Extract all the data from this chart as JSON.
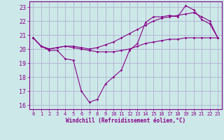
{
  "xlabel": "Windchill (Refroidissement éolien,°C)",
  "bg_color": "#cce8e8",
  "grid_color": "#aaaacc",
  "line_color": "#880088",
  "xlim": [
    -0.5,
    23.5
  ],
  "ylim": [
    15.7,
    23.4
  ],
  "yticks": [
    16,
    17,
    18,
    19,
    20,
    21,
    22,
    23
  ],
  "xticks": [
    0,
    1,
    2,
    3,
    4,
    5,
    6,
    7,
    8,
    9,
    10,
    11,
    12,
    13,
    14,
    15,
    16,
    17,
    18,
    19,
    20,
    21,
    22,
    23
  ],
  "line1_x": [
    0,
    1,
    2,
    3,
    4,
    5,
    6,
    7,
    8,
    9,
    10,
    11,
    12,
    13,
    14,
    15,
    16,
    17,
    18,
    19,
    20,
    21,
    22,
    23
  ],
  "line1_y": [
    20.8,
    20.2,
    19.9,
    19.9,
    19.3,
    19.2,
    17.0,
    16.2,
    16.4,
    17.5,
    18.0,
    18.5,
    19.9,
    20.4,
    21.9,
    22.3,
    22.3,
    22.4,
    22.3,
    23.1,
    22.8,
    22.1,
    21.8,
    20.8
  ],
  "line2_x": [
    0,
    1,
    2,
    3,
    4,
    5,
    6,
    7,
    8,
    9,
    10,
    11,
    12,
    13,
    14,
    15,
    16,
    17,
    18,
    19,
    20,
    21,
    22,
    23
  ],
  "line2_y": [
    20.8,
    20.2,
    20.0,
    20.1,
    20.2,
    20.1,
    20.0,
    19.9,
    19.8,
    19.8,
    19.8,
    19.9,
    20.0,
    20.2,
    20.4,
    20.5,
    20.6,
    20.7,
    20.7,
    20.8,
    20.8,
    20.8,
    20.8,
    20.8
  ],
  "line3_x": [
    0,
    1,
    2,
    3,
    4,
    5,
    6,
    7,
    8,
    9,
    10,
    11,
    12,
    13,
    14,
    15,
    16,
    17,
    18,
    19,
    20,
    21,
    22,
    23
  ],
  "line3_y": [
    20.8,
    20.2,
    20.0,
    20.1,
    20.2,
    20.2,
    20.1,
    20.0,
    20.1,
    20.3,
    20.5,
    20.8,
    21.1,
    21.4,
    21.7,
    22.0,
    22.2,
    22.3,
    22.4,
    22.5,
    22.6,
    22.3,
    22.0,
    20.8
  ]
}
